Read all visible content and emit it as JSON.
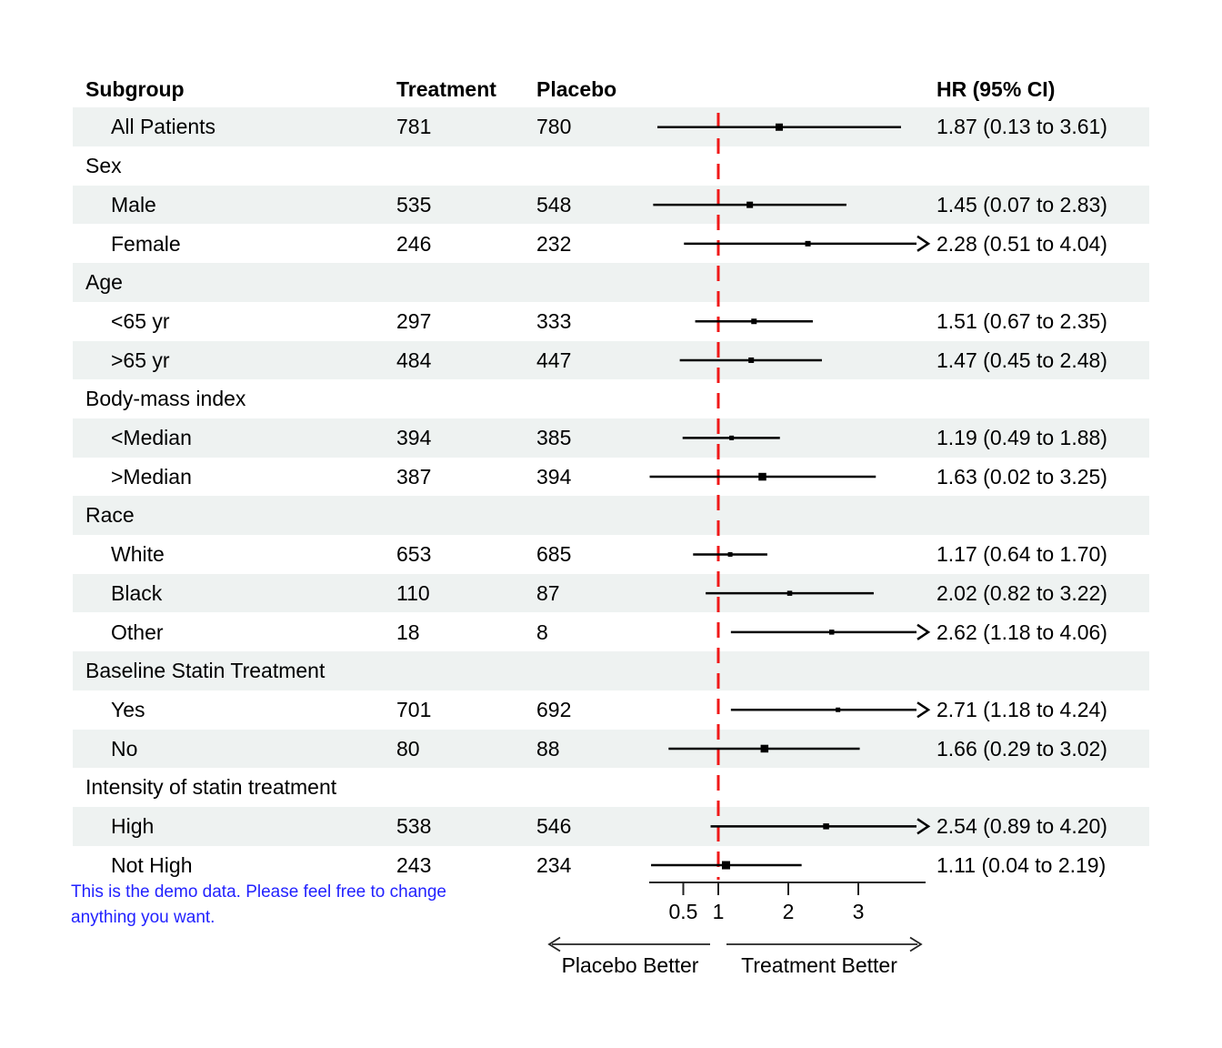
{
  "colors": {
    "stripe": "#eef2f1",
    "refline": "#f01818",
    "ci_line": "#000000",
    "marker": "#000000",
    "axis": "#222222",
    "footnote": "#2222ff"
  },
  "chart_data": {
    "type": "forest",
    "columns": [
      "Subgroup",
      "Treatment",
      "Placebo",
      "HR (95% CI)"
    ],
    "axis": {
      "scale": "linear",
      "ticks": [
        0.5,
        1,
        2,
        3
      ],
      "range": [
        0.03,
        3.96
      ],
      "refline": 1,
      "left_label": "Placebo Better",
      "right_label": "Treatment Better"
    },
    "rows": [
      {
        "label": "All Patients",
        "indent": 1,
        "treatment": "781",
        "placebo": "780",
        "hr": 1.87,
        "lo": 0.13,
        "hi": 3.61,
        "hr_text": "1.87 (0.13 to 3.61)",
        "clipped": false,
        "marker": 8
      },
      {
        "label": "Sex",
        "indent": 0,
        "group": true
      },
      {
        "label": "Male",
        "indent": 1,
        "treatment": "535",
        "placebo": "548",
        "hr": 1.45,
        "lo": 0.07,
        "hi": 2.83,
        "hr_text": "1.45 (0.07 to 2.83)",
        "clipped": false,
        "marker": 7
      },
      {
        "label": "Female",
        "indent": 1,
        "treatment": "246",
        "placebo": "232",
        "hr": 2.28,
        "lo": 0.51,
        "hi": 4.04,
        "hr_text": "2.28 (0.51 to 4.04)",
        "clipped": true,
        "marker": 6
      },
      {
        "label": "Age",
        "indent": 0,
        "group": true
      },
      {
        "label": "<65 yr",
        "indent": 1,
        "treatment": "297",
        "placebo": "333",
        "hr": 1.51,
        "lo": 0.67,
        "hi": 2.35,
        "hr_text": "1.51 (0.67 to 2.35)",
        "clipped": false,
        "marker": 6
      },
      {
        "label": ">65 yr",
        "indent": 1,
        "treatment": "484",
        "placebo": "447",
        "hr": 1.47,
        "lo": 0.45,
        "hi": 2.48,
        "hr_text": "1.47 (0.45 to 2.48)",
        "clipped": false,
        "marker": 6
      },
      {
        "label": "Body-mass index",
        "indent": 0,
        "group": true
      },
      {
        "label": "<Median",
        "indent": 1,
        "treatment": "394",
        "placebo": "385",
        "hr": 1.19,
        "lo": 0.49,
        "hi": 1.88,
        "hr_text": "1.19 (0.49 to 1.88)",
        "clipped": false,
        "marker": 5
      },
      {
        "label": ">Median",
        "indent": 1,
        "treatment": "387",
        "placebo": "394",
        "hr": 1.63,
        "lo": 0.02,
        "hi": 3.25,
        "hr_text": "1.63 (0.02 to 3.25)",
        "clipped": false,
        "marker": 8.5
      },
      {
        "label": "Race",
        "indent": 0,
        "group": true
      },
      {
        "label": "White",
        "indent": 1,
        "treatment": "653",
        "placebo": "685",
        "hr": 1.17,
        "lo": 0.64,
        "hi": 1.7,
        "hr_text": "1.17 (0.64 to 1.70)",
        "clipped": false,
        "marker": 5
      },
      {
        "label": "Black",
        "indent": 1,
        "treatment": "110",
        "placebo": "87",
        "hr": 2.02,
        "lo": 0.82,
        "hi": 3.22,
        "hr_text": "2.02 (0.82 to 3.22)",
        "clipped": false,
        "marker": 5.5
      },
      {
        "label": "Other",
        "indent": 1,
        "treatment": "18",
        "placebo": "8",
        "hr": 2.62,
        "lo": 1.18,
        "hi": 4.06,
        "hr_text": "2.62 (1.18 to 4.06)",
        "clipped": true,
        "marker": 5.5
      },
      {
        "label": "Baseline Statin Treatment",
        "indent": 0,
        "group": true
      },
      {
        "label": "Yes",
        "indent": 1,
        "treatment": "701",
        "placebo": "692",
        "hr": 2.71,
        "lo": 1.18,
        "hi": 4.24,
        "hr_text": "2.71 (1.18 to 4.24)",
        "clipped": true,
        "marker": 5
      },
      {
        "label": "No",
        "indent": 1,
        "treatment": "80",
        "placebo": "88",
        "hr": 1.66,
        "lo": 0.29,
        "hi": 3.02,
        "hr_text": "1.66 (0.29 to 3.02)",
        "clipped": false,
        "marker": 8.5
      },
      {
        "label": "Intensity of statin treatment",
        "indent": 0,
        "group": true
      },
      {
        "label": "High",
        "indent": 1,
        "treatment": "538",
        "placebo": "546",
        "hr": 2.54,
        "lo": 0.89,
        "hi": 4.2,
        "hr_text": "2.54 (0.89 to 4.20)",
        "clipped": true,
        "marker": 6.5
      },
      {
        "label": "Not High",
        "indent": 1,
        "treatment": "243",
        "placebo": "234",
        "hr": 1.11,
        "lo": 0.04,
        "hi": 2.19,
        "hr_text": "1.11 (0.04 to 2.19)",
        "clipped": false,
        "marker": 9
      }
    ],
    "footnote": "This is the demo data. Please feel free to change anything you want."
  }
}
